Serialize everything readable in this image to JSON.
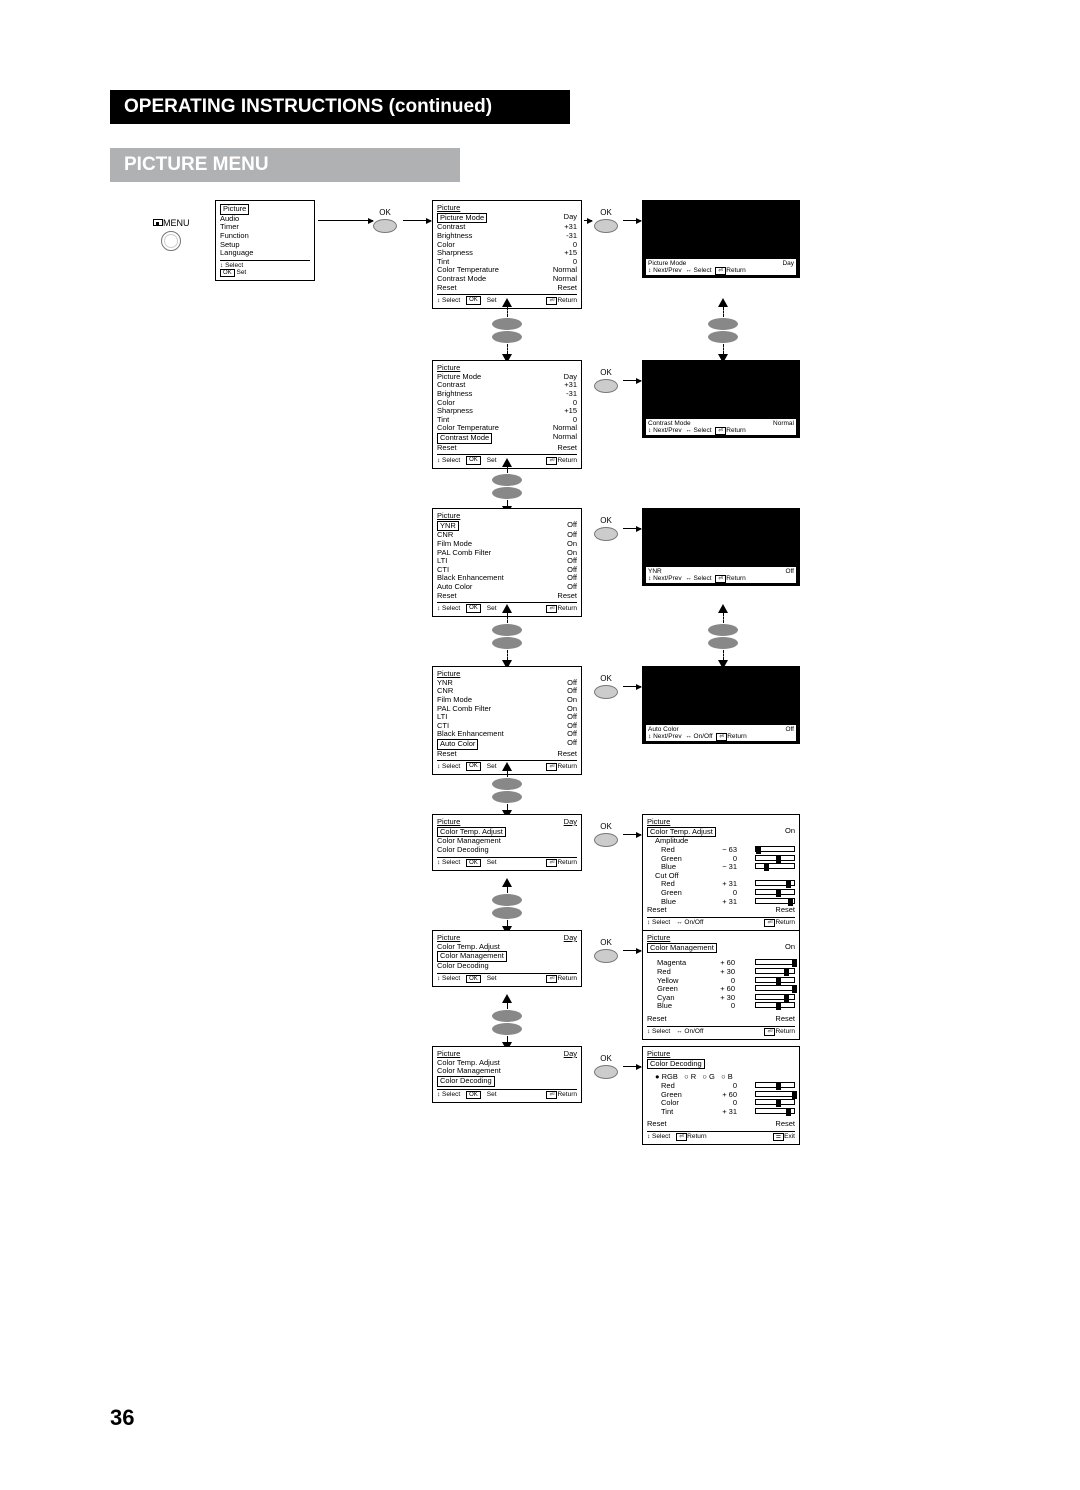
{
  "page_number": "36",
  "titles": {
    "black": "OPERATING INSTRUCTIONS (continued)",
    "grey": "PICTURE MENU"
  },
  "labels": {
    "menu": "MENU",
    "ok": "OK",
    "set": "Set",
    "select": "Select",
    "return": "Return",
    "nextprev": "Next/Prev",
    "onoff": "On/Off",
    "exit": "Exit",
    "reset": "Reset"
  },
  "menu1": {
    "title": "Picture",
    "items": [
      "Audio",
      "Timer",
      "Function",
      "Setup",
      "Language"
    ]
  },
  "pic_main": {
    "title": "Picture",
    "mode": "Day",
    "rows": [
      [
        "Picture Mode",
        "Day"
      ],
      [
        "Contrast",
        "+31"
      ],
      [
        "Brightness",
        "-31"
      ],
      [
        "Color",
        "0"
      ],
      [
        "Sharpness",
        "+15"
      ],
      [
        "Tint",
        "0"
      ],
      [
        "Color Temperature",
        "Normal"
      ],
      [
        "Contrast Mode",
        "Normal"
      ],
      [
        "Reset",
        "Reset"
      ]
    ],
    "highlight_a": "Picture Mode",
    "highlight_b": "Contrast Mode"
  },
  "infobar": {
    "pm": {
      "label": "Picture Mode",
      "val": "Day"
    },
    "cm": {
      "label": "Contrast Mode",
      "val": "Normal"
    },
    "ynr": {
      "label": "YNR",
      "val": "Off"
    },
    "ac": {
      "label": "Auto Color",
      "val": "Off"
    }
  },
  "pic_ynr": {
    "title": "Picture",
    "mode": "Day",
    "rows": [
      [
        "YNR",
        "Off"
      ],
      [
        "CNR",
        "Off"
      ],
      [
        "Film Mode",
        "On"
      ],
      [
        "PAL Comb Filter",
        "On"
      ],
      [
        "LTI",
        "Off"
      ],
      [
        "CTI",
        "Off"
      ],
      [
        "Black Enhancement",
        "Off"
      ],
      [
        "Auto Color",
        "Off"
      ],
      [
        "Reset",
        "Reset"
      ]
    ],
    "highlight_a": "YNR",
    "highlight_b": "Auto Color"
  },
  "pic_sub": {
    "title": "Picture",
    "mode": "Day",
    "items": [
      "Color Temp. Adjust",
      "Color Management",
      "Color Decoding"
    ],
    "h1": "Color Temp. Adjust",
    "h2": "Color Management",
    "h3": "Color Decoding"
  },
  "cta": {
    "title": "Picture",
    "sub": "Color Temp. Adjust",
    "on": "On",
    "amp": "Amplitude",
    "cut": "Cut Off",
    "rows_amp": [
      [
        "Red",
        "− 63"
      ],
      [
        "Green",
        "0"
      ],
      [
        "Blue",
        "− 31"
      ]
    ],
    "rows_cut": [
      [
        "Red",
        "+ 31"
      ],
      [
        "Green",
        "0"
      ],
      [
        "Blue",
        "+ 31"
      ]
    ],
    "knobs_amp": [
      0,
      20,
      8
    ],
    "knobs_cut": [
      30,
      20,
      32
    ]
  },
  "cmg": {
    "title": "Picture",
    "sub": "Color Management",
    "on": "On",
    "rows": [
      [
        "Magenta",
        "+ 60"
      ],
      [
        "Red",
        "+ 30"
      ],
      [
        "Yellow",
        "0"
      ],
      [
        "Green",
        "+ 60"
      ],
      [
        "Cyan",
        "+ 30"
      ],
      [
        "Blue",
        "0"
      ]
    ],
    "knobs": [
      36,
      28,
      20,
      36,
      28,
      20
    ]
  },
  "cde": {
    "title": "Picture",
    "sub": "Color Decoding",
    "radio": [
      "RGB",
      "R",
      "G",
      "B"
    ],
    "rows": [
      [
        "Red",
        "0"
      ],
      [
        "Green",
        "+ 60"
      ],
      [
        "Color",
        "0"
      ],
      [
        "Tint",
        "+ 31"
      ]
    ],
    "knobs": [
      20,
      36,
      20,
      30
    ]
  }
}
